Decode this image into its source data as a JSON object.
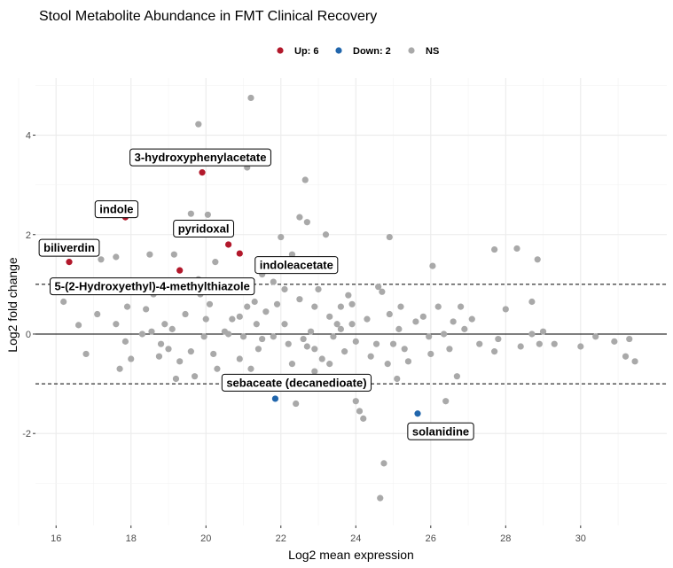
{
  "chart_data": {
    "type": "scatter",
    "title": "Stool Metabolite Abundance in FMT Clinical Recovery",
    "xlabel": "Log2 mean expression",
    "ylabel": "Log2 fold change",
    "xlim": [
      15.45,
      32.3
    ],
    "ylim": [
      -3.85,
      5.15
    ],
    "xticks": [
      16,
      18,
      20,
      22,
      24,
      26,
      28,
      30
    ],
    "yticks": [
      -2,
      0,
      2,
      4
    ],
    "grid": true,
    "legend_position": "top",
    "reference_lines": [
      {
        "y": 0,
        "style": "solid"
      },
      {
        "y": 1,
        "style": "dashed"
      },
      {
        "y": -1,
        "style": "dashed"
      }
    ],
    "legend": [
      {
        "label": "Up: 6",
        "color": "#b2182b"
      },
      {
        "label": "Down: 2",
        "color": "#2166ac"
      },
      {
        "label": "NS",
        "color": "#a9a9a9"
      }
    ],
    "series": [
      {
        "name": "Up: 6",
        "color": "#b2182b",
        "points": [
          [
            16.35,
            1.45
          ],
          [
            17.85,
            2.35
          ],
          [
            19.3,
            1.28
          ],
          [
            19.9,
            3.25
          ],
          [
            20.6,
            1.8
          ],
          [
            20.9,
            1.62
          ]
        ]
      },
      {
        "name": "Down: 2",
        "color": "#2166ac",
        "points": [
          [
            21.85,
            -1.3
          ],
          [
            25.65,
            -1.6
          ]
        ]
      },
      {
        "name": "NS",
        "color": "#a9a9a9",
        "points": [
          [
            21.2,
            4.75
          ],
          [
            19.8,
            4.22
          ],
          [
            21.1,
            3.35
          ],
          [
            22.65,
            3.1
          ],
          [
            17.4,
            2.5
          ],
          [
            19.6,
            2.42
          ],
          [
            20.05,
            2.4
          ],
          [
            22.5,
            2.35
          ],
          [
            22.7,
            2.25
          ],
          [
            23.2,
            2.0
          ],
          [
            22.0,
            1.95
          ],
          [
            24.9,
            1.95
          ],
          [
            26.05,
            1.37
          ],
          [
            27.7,
            1.7
          ],
          [
            28.3,
            1.72
          ],
          [
            28.85,
            1.5
          ],
          [
            21.8,
            1.05
          ],
          [
            21.1,
            0.95
          ],
          [
            22.1,
            0.9
          ],
          [
            21.5,
            1.2
          ],
          [
            22.3,
            1.6
          ],
          [
            23.8,
            0.78
          ],
          [
            24.7,
            0.85
          ],
          [
            25.2,
            0.55
          ],
          [
            26.8,
            0.55
          ],
          [
            25.8,
            0.35
          ],
          [
            26.2,
            0.55
          ],
          [
            28.7,
            0.65
          ],
          [
            28.0,
            0.5
          ],
          [
            29.0,
            0.05
          ],
          [
            30.4,
            -0.05
          ],
          [
            30.9,
            -0.15
          ],
          [
            31.3,
            -0.1
          ],
          [
            31.45,
            -0.55
          ],
          [
            31.2,
            -0.45
          ],
          [
            30.0,
            -0.25
          ],
          [
            29.3,
            -0.2
          ],
          [
            28.9,
            -0.2
          ],
          [
            28.4,
            -0.25
          ],
          [
            27.7,
            -0.35
          ],
          [
            27.3,
            -0.2
          ],
          [
            26.5,
            -0.3
          ],
          [
            26.0,
            -0.4
          ],
          [
            25.4,
            -0.55
          ],
          [
            25.1,
            -0.9
          ],
          [
            26.7,
            -0.85
          ],
          [
            27.8,
            -0.1
          ],
          [
            28.7,
            0.0
          ],
          [
            26.4,
            -1.35
          ],
          [
            24.1,
            -1.55
          ],
          [
            24.2,
            -1.7
          ],
          [
            24.75,
            -2.6
          ],
          [
            24.65,
            -3.3
          ],
          [
            24.0,
            -1.35
          ],
          [
            22.4,
            -1.4
          ],
          [
            16.2,
            0.65
          ],
          [
            16.6,
            0.18
          ],
          [
            17.1,
            0.4
          ],
          [
            17.9,
            0.55
          ],
          [
            17.7,
            -0.7
          ],
          [
            18.0,
            -0.5
          ],
          [
            18.8,
            -0.2
          ],
          [
            19.3,
            -0.55
          ],
          [
            19.0,
            -0.3
          ],
          [
            18.4,
            0.5
          ],
          [
            18.6,
            0.8
          ],
          [
            19.4,
            1.0
          ],
          [
            19.85,
            0.8
          ],
          [
            20.25,
            1.45
          ],
          [
            19.15,
            1.6
          ],
          [
            20.4,
            0.85
          ],
          [
            20.7,
            0.3
          ],
          [
            21.0,
            -0.05
          ],
          [
            21.3,
            0.65
          ],
          [
            21.6,
            0.45
          ],
          [
            22.1,
            0.2
          ],
          [
            22.9,
            0.55
          ],
          [
            23.3,
            0.35
          ],
          [
            23.6,
            0.1
          ],
          [
            23.9,
            0.6
          ],
          [
            24.3,
            0.3
          ],
          [
            24.55,
            -0.2
          ],
          [
            24.9,
            0.4
          ],
          [
            25.15,
            0.1
          ],
          [
            25.6,
            0.25
          ],
          [
            25.95,
            -0.05
          ],
          [
            26.35,
            0.0
          ],
          [
            26.9,
            0.1
          ],
          [
            22.2,
            -0.2
          ],
          [
            22.7,
            -0.25
          ],
          [
            23.1,
            -0.5
          ],
          [
            23.4,
            -0.05
          ],
          [
            23.7,
            -0.35
          ],
          [
            24.0,
            -0.15
          ],
          [
            21.4,
            -0.3
          ],
          [
            20.9,
            -0.5
          ],
          [
            20.2,
            -0.4
          ],
          [
            19.6,
            -0.35
          ],
          [
            19.1,
            0.1
          ],
          [
            18.3,
            0.0
          ],
          [
            17.6,
            0.2
          ],
          [
            18.9,
            0.2
          ],
          [
            20.0,
            0.3
          ],
          [
            20.5,
            0.05
          ],
          [
            21.1,
            0.55
          ],
          [
            21.8,
            -0.05
          ],
          [
            22.5,
            0.7
          ],
          [
            23.0,
            0.9
          ],
          [
            23.5,
            0.2
          ],
          [
            24.4,
            -0.45
          ],
          [
            24.85,
            -0.6
          ],
          [
            22.9,
            -0.75
          ],
          [
            21.6,
            -0.9
          ],
          [
            19.7,
            -0.85
          ],
          [
            19.2,
            -0.9
          ],
          [
            17.2,
            1.5
          ],
          [
            17.6,
            1.55
          ],
          [
            18.5,
            1.6
          ],
          [
            19.8,
            1.1
          ],
          [
            20.1,
            0.6
          ],
          [
            21.9,
            0.6
          ],
          [
            23.6,
            0.55
          ],
          [
            24.6,
            0.95
          ],
          [
            26.6,
            0.25
          ],
          [
            27.1,
            0.3
          ],
          [
            25.3,
            -0.3
          ],
          [
            22.9,
            -0.3
          ],
          [
            20.6,
            0.0
          ],
          [
            19.45,
            0.4
          ],
          [
            18.55,
            0.05
          ],
          [
            17.85,
            -0.15
          ],
          [
            16.8,
            -0.4
          ],
          [
            20.3,
            -0.7
          ],
          [
            21.2,
            -0.7
          ],
          [
            22.3,
            -0.6
          ],
          [
            23.3,
            -0.6
          ],
          [
            24.3,
            -1.0
          ],
          [
            25.0,
            -0.2
          ],
          [
            20.9,
            0.35
          ],
          [
            21.5,
            -0.1
          ],
          [
            22.8,
            0.05
          ],
          [
            23.9,
            0.2
          ],
          [
            18.2,
            0.85
          ],
          [
            18.75,
            -0.45
          ],
          [
            19.95,
            -0.05
          ],
          [
            21.35,
            0.2
          ],
          [
            22.6,
            -0.1
          ]
        ]
      }
    ],
    "annotations": [
      {
        "text": "3-hydroxyphenylacetate",
        "x": 19.9,
        "y": 3.25
      },
      {
        "text": "indole",
        "x": 17.85,
        "y": 2.35
      },
      {
        "text": "pyridoxal",
        "x": 20.6,
        "y": 1.8
      },
      {
        "text": "biliverdin",
        "x": 16.35,
        "y": 1.45
      },
      {
        "text": "indoleacetate",
        "x": 20.9,
        "y": 1.62
      },
      {
        "text": "5-(2-Hydroxyethyl)-4-methylthiazole",
        "x": 19.3,
        "y": 1.28
      },
      {
        "text": "sebaceate (decanedioate)",
        "x": 21.85,
        "y": -1.3
      },
      {
        "text": "solanidine",
        "x": 25.65,
        "y": -1.6
      }
    ]
  }
}
